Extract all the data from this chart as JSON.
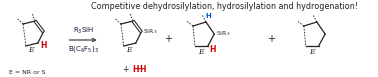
{
  "title": "Competitive dehydrosilylation, hydrosilylation and hydrogenation!",
  "title_fontsize": 5.8,
  "title_color": "#222222",
  "background_color": "#ffffff",
  "reagent_line1": "R$_3$SiH",
  "reagent_line2": "B(C$_6$F$_5$)$_3$",
  "label_E": "E = NR or S",
  "blue_color": "#0055cc",
  "red_color": "#cc0000",
  "arrow_color": "#444444",
  "bond_color": "#222222",
  "figwidth": 3.78,
  "figheight": 0.77,
  "dpi": 100
}
